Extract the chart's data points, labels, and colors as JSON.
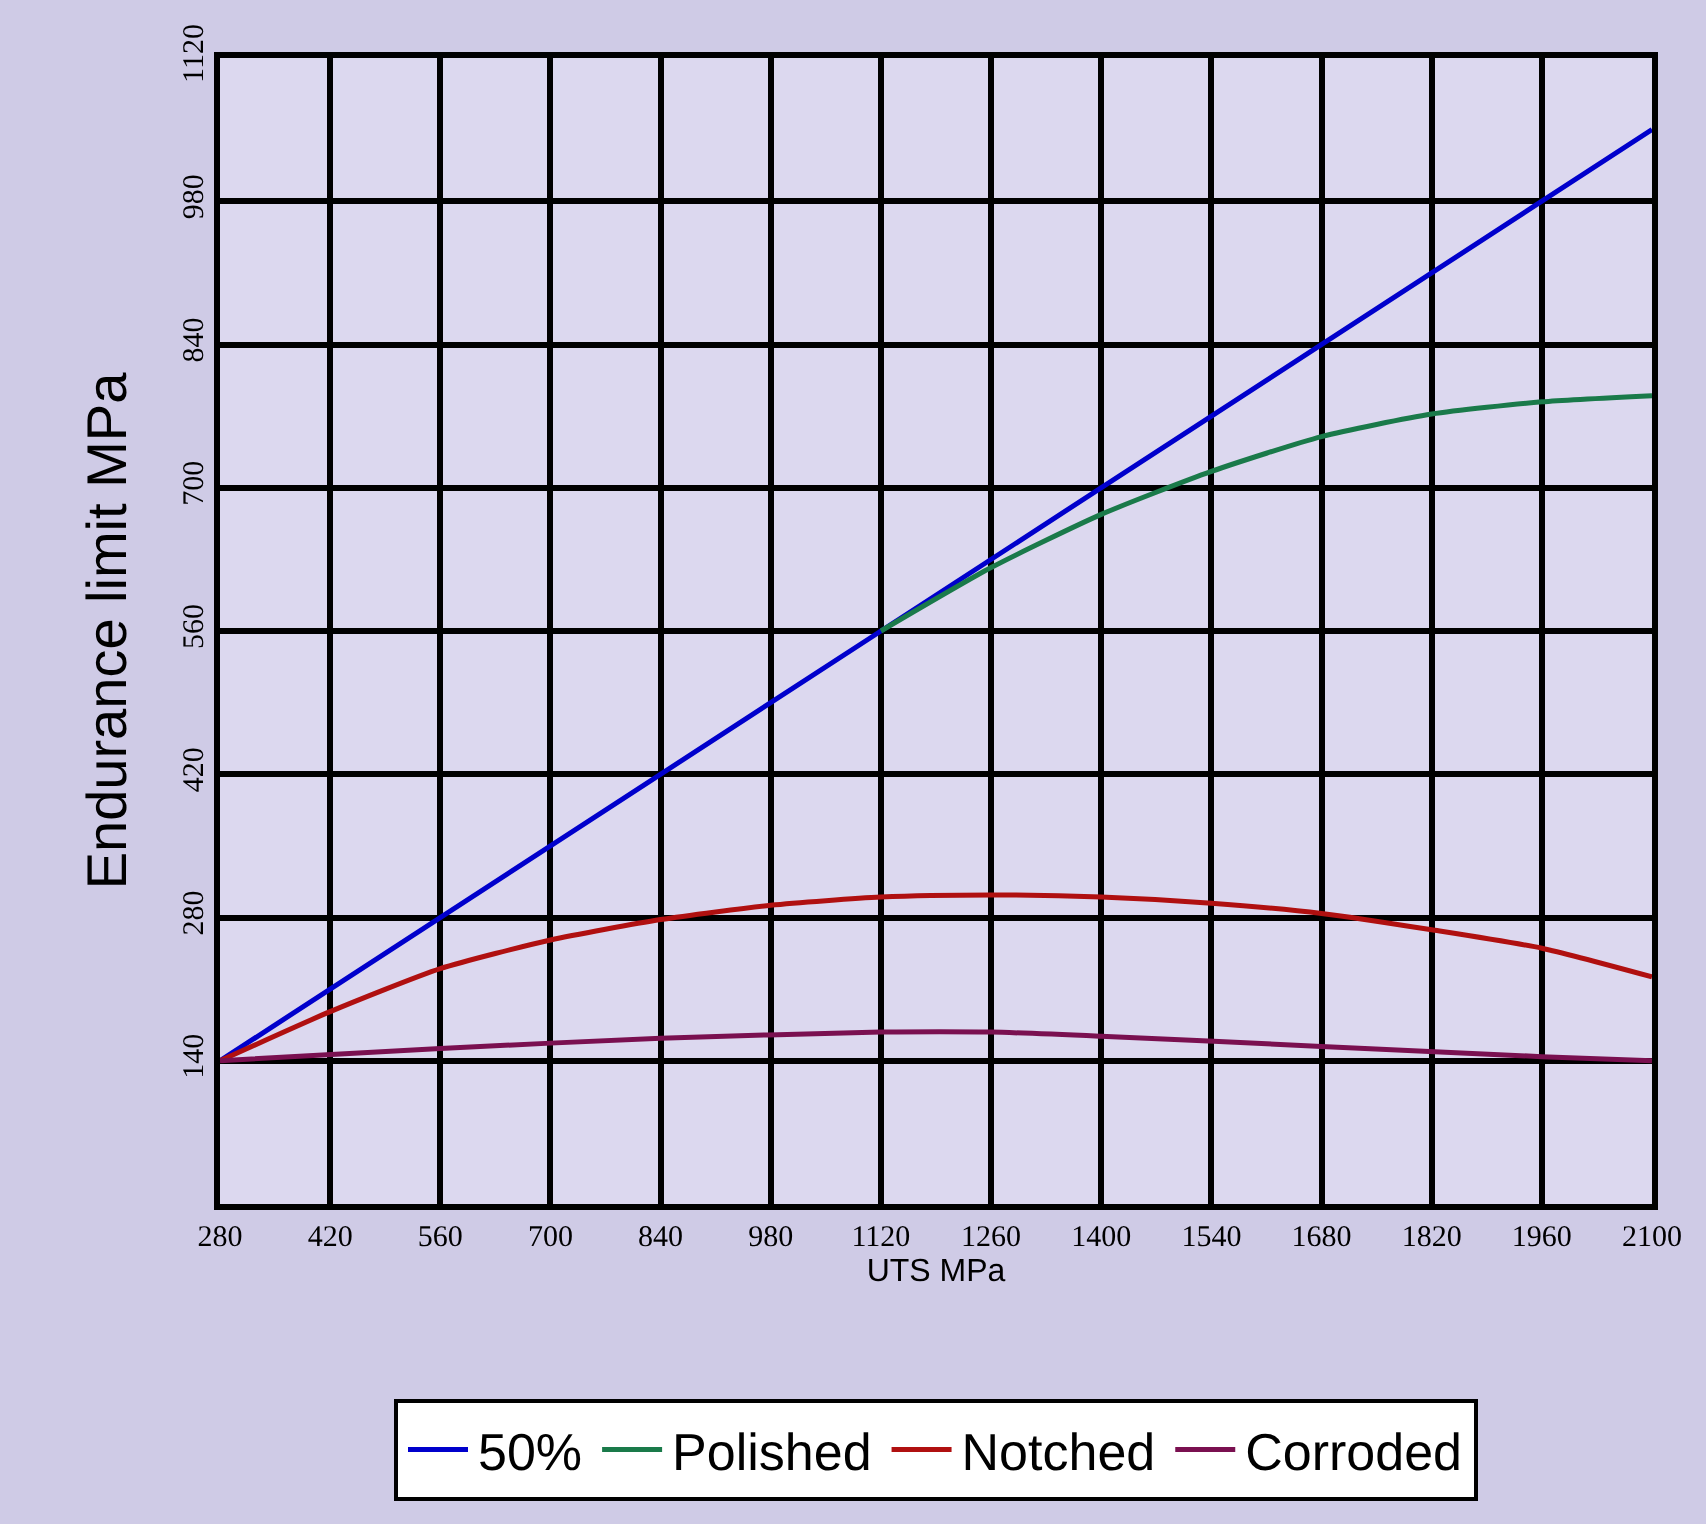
{
  "chart_data": {
    "type": "line",
    "xlabel": "UTS MPa",
    "ylabel": "Endurance limit MPa",
    "xlim": [
      280,
      2100
    ],
    "xticks": [
      280,
      420,
      560,
      700,
      840,
      980,
      1120,
      1260,
      1400,
      1540,
      1680,
      1820,
      1960,
      2100
    ],
    "ylim": [
      0,
      1120
    ],
    "yticks": [
      {
        "value": 0,
        "label": null
      },
      140,
      280,
      420,
      560,
      700,
      840,
      980,
      1120
    ],
    "grid": true,
    "legend": "bottom",
    "line_style": "solid",
    "marker": "none",
    "series": [
      {
        "name": "50%",
        "color": "#0000cc",
        "x": [
          280,
          1120,
          2100
        ],
        "values": [
          140,
          560,
          1050
        ]
      },
      {
        "name": "Polished",
        "color": "#1a7a4a",
        "x": [
          1120,
          1260,
          1400,
          1540,
          1680,
          1820,
          1960,
          2100
        ],
        "values": [
          560,
          622,
          674,
          716,
          750,
          772,
          784,
          790
        ]
      },
      {
        "name": "Notched",
        "color": "#b01010",
        "x": [
          280,
          420,
          560,
          700,
          840,
          980,
          1120,
          1260,
          1400,
          1540,
          1680,
          1820,
          1960,
          2100
        ],
        "values": [
          140,
          188,
          230,
          258,
          278,
          292,
          300,
          302,
          300,
          294,
          284,
          268,
          250,
          222
        ]
      },
      {
        "name": "Corroded",
        "color": "#7a1050",
        "x": [
          280,
          560,
          840,
          1120,
          1260,
          1400,
          1680,
          1960,
          2100
        ],
        "values": [
          140,
          152,
          162,
          168,
          168,
          164,
          154,
          144,
          140
        ]
      }
    ]
  }
}
